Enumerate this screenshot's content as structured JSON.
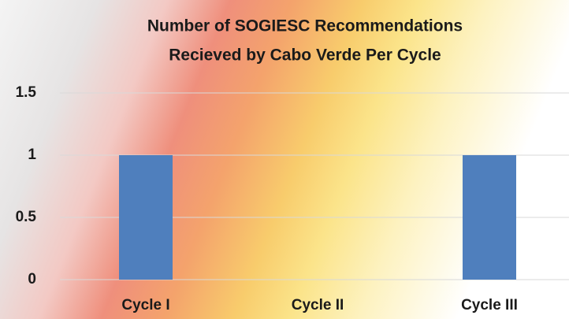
{
  "chart_data": {
    "type": "bar",
    "title": [
      "Number of SOGIESC Recommendations",
      "Recieved by Cabo Verde Per Cycle"
    ],
    "categories": [
      "Cycle I",
      "Cycle II",
      "Cycle III"
    ],
    "values": [
      1,
      0,
      1
    ],
    "color": "#4f7fbd",
    "ylim": [
      0,
      1.5
    ],
    "yticks": [
      0,
      0.5,
      1,
      1.5
    ],
    "grid": true
  }
}
